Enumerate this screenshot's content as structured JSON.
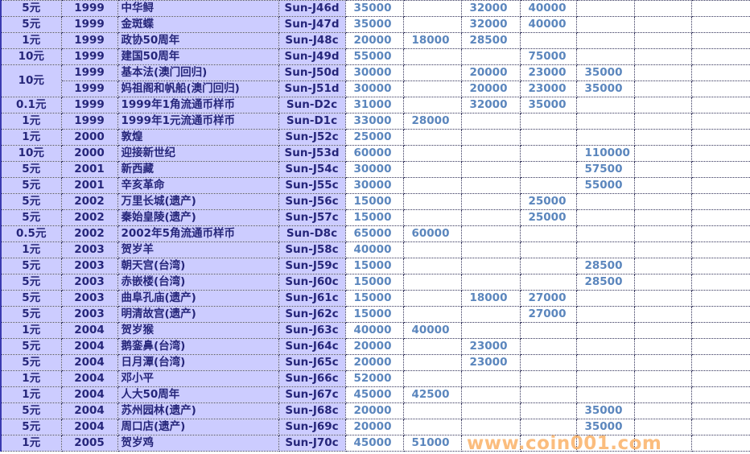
{
  "colors": {
    "left_bg": "#ccccff",
    "left_text": "#26267a",
    "price_text": "#5b86bd",
    "watermark": "#faaa5a"
  },
  "watermark": "www.coin001.com",
  "rows": [
    {
      "denom": "5元",
      "year": "1999",
      "name": "中华鲟",
      "code": "Sun-J46d",
      "prices": [
        "35000",
        "",
        "32000",
        "40000",
        "",
        "",
        ""
      ]
    },
    {
      "denom": "5元",
      "year": "1999",
      "name": "金斑蝶",
      "code": "Sun-J47d",
      "prices": [
        "35000",
        "",
        "32000",
        "40000",
        "",
        "",
        ""
      ]
    },
    {
      "denom": "1元",
      "year": "1999",
      "name": "政协50周年",
      "code": "Sun-J48c",
      "prices": [
        "20000",
        "18000",
        "28500",
        "",
        "",
        "",
        ""
      ]
    },
    {
      "denom": "10元",
      "year": "1999",
      "name": "建国50周年",
      "code": "Sun-J49d",
      "prices": [
        "55000",
        "",
        "",
        "75000",
        "",
        "",
        ""
      ]
    },
    {
      "denom": "10元",
      "denom_rowspan": 2,
      "year": "1999",
      "name": "基本法(澳门回归)",
      "code": "Sun-J50d",
      "prices": [
        "30000",
        "",
        "20000",
        "23000",
        "35000",
        "",
        ""
      ]
    },
    {
      "denom": null,
      "year": "1999",
      "name": "妈祖阁和帆船(澳门回归)",
      "code": "Sun-J51d",
      "prices": [
        "30000",
        "",
        "20000",
        "23000",
        "35000",
        "",
        ""
      ]
    },
    {
      "denom": "0.1元",
      "year": "1999",
      "name": "1999年1角流通币样币",
      "code": "Sun-D2c",
      "prices": [
        "31000",
        "",
        "32000",
        "35000",
        "",
        "",
        ""
      ]
    },
    {
      "denom": "1元",
      "year": "1999",
      "name": "1999年1元流通币样币",
      "code": "Sun-D1c",
      "prices": [
        "33000",
        "28000",
        "",
        "",
        "",
        "",
        ""
      ]
    },
    {
      "denom": "1元",
      "year": "2000",
      "name": "敦煌",
      "code": "Sun-J52c",
      "prices": [
        "25000",
        "",
        "",
        "",
        "",
        "",
        ""
      ]
    },
    {
      "denom": "10元",
      "year": "2000",
      "name": "迎接新世纪",
      "code": "Sun-J53d",
      "prices": [
        "60000",
        "",
        "",
        "",
        "110000",
        "",
        ""
      ]
    },
    {
      "denom": "5元",
      "year": "2001",
      "name": "新西藏",
      "code": "Sun-J54c",
      "prices": [
        "30000",
        "",
        "",
        "",
        "57500",
        "",
        ""
      ]
    },
    {
      "denom": "5元",
      "year": "2001",
      "name": "辛亥革命",
      "code": "Sun-J55c",
      "prices": [
        "30000",
        "",
        "",
        "",
        "55000",
        "",
        ""
      ]
    },
    {
      "denom": "5元",
      "year": "2002",
      "name": "万里长城(遗产)",
      "code": "Sun-J56c",
      "prices": [
        "15000",
        "",
        "",
        "25000",
        "",
        "",
        ""
      ]
    },
    {
      "denom": "5元",
      "year": "2002",
      "name": "秦始皇陵(遗产)",
      "code": "Sun-J57c",
      "prices": [
        "15000",
        "",
        "",
        "25000",
        "",
        "",
        ""
      ]
    },
    {
      "denom": "0.5元",
      "year": "2002",
      "name": "2002年5角流通币样币",
      "code": "Sun-D8c",
      "prices": [
        "65000",
        "60000",
        "",
        "",
        "",
        "",
        ""
      ]
    },
    {
      "denom": "1元",
      "year": "2003",
      "name": "贺岁羊",
      "code": "Sun-J58c",
      "prices": [
        "40000",
        "",
        "",
        "",
        "",
        "",
        ""
      ]
    },
    {
      "denom": "5元",
      "year": "2003",
      "name": "朝天宫(台湾)",
      "code": "Sun-J59c",
      "prices": [
        "15000",
        "",
        "",
        "",
        "28500",
        "",
        ""
      ]
    },
    {
      "denom": "5元",
      "year": "2003",
      "name": "赤嵌楼(台湾)",
      "code": "Sun-J60c",
      "prices": [
        "15000",
        "",
        "",
        "",
        "28500",
        "",
        ""
      ]
    },
    {
      "denom": "5元",
      "year": "2003",
      "name": "曲阜孔庙(遗产)",
      "code": "Sun-J61c",
      "prices": [
        "15000",
        "",
        "18000",
        "27000",
        "",
        "",
        ""
      ]
    },
    {
      "denom": "5元",
      "year": "2003",
      "name": "明清故宫(遗产)",
      "code": "Sun-J62c",
      "prices": [
        "15000",
        "",
        "",
        "27000",
        "",
        "",
        ""
      ]
    },
    {
      "denom": "1元",
      "year": "2004",
      "name": "贺岁猴",
      "code": "Sun-J63c",
      "prices": [
        "40000",
        "40000",
        "",
        "",
        "",
        "",
        ""
      ]
    },
    {
      "denom": "5元",
      "year": "2004",
      "name": "鹅銮鼻(台湾)",
      "code": "Sun-J64c",
      "prices": [
        "20000",
        "",
        "23000",
        "",
        "",
        "",
        ""
      ]
    },
    {
      "denom": "5元",
      "year": "2004",
      "name": "日月潭(台湾)",
      "code": "Sun-J65c",
      "prices": [
        "20000",
        "",
        "23000",
        "",
        "",
        "",
        ""
      ]
    },
    {
      "denom": "1元",
      "year": "2004",
      "name": "邓小平",
      "code": "Sun-J66c",
      "prices": [
        "52000",
        "",
        "",
        "",
        "",
        "",
        ""
      ]
    },
    {
      "denom": "1元",
      "year": "2004",
      "name": "人大50周年",
      "code": "Sun-J67c",
      "prices": [
        "45000",
        "42500",
        "",
        "",
        "",
        "",
        ""
      ]
    },
    {
      "denom": "5元",
      "year": "2004",
      "name": "苏州园林(遗产)",
      "code": "Sun-J68c",
      "prices": [
        "20000",
        "",
        "",
        "",
        "35000",
        "",
        ""
      ]
    },
    {
      "denom": "5元",
      "year": "2004",
      "name": "周口店(遗产)",
      "code": "Sun-J69c",
      "prices": [
        "20000",
        "",
        "",
        "",
        "35000",
        "",
        ""
      ]
    },
    {
      "denom": "1元",
      "year": "2005",
      "name": "贺岁鸡",
      "code": "Sun-J70c",
      "prices": [
        "45000",
        "51000",
        "",
        "",
        "",
        "",
        ""
      ]
    }
  ]
}
